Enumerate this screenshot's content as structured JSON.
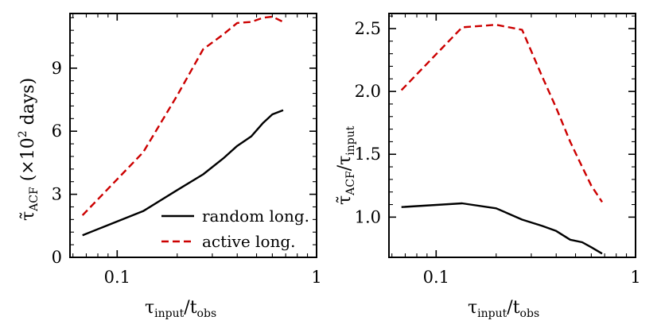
{
  "chart_data": [
    {
      "type": "line",
      "xscale": "log",
      "xlim": [
        0.058,
        1.0
      ],
      "ylim": [
        0,
        11.6
      ],
      "xticks": [
        0.1,
        1
      ],
      "xtick_labels": [
        "0.1",
        "1"
      ],
      "yticks": [
        0,
        3,
        6,
        9
      ],
      "ytick_labels": [
        "0",
        "3",
        "6",
        "9"
      ],
      "xlabel": {
        "main": "τ",
        "sub1": "input",
        "mid": "/t",
        "sub2": "obs"
      },
      "ylabel": {
        "main": "τ̃",
        "sub": "ACF",
        "rest": " (×10",
        "sup": "2",
        "end": " days)"
      },
      "legend_position": "lower-right",
      "series": [
        {
          "name": "random long.",
          "color": "#000000",
          "dash": "solid",
          "x": [
            0.067,
            0.135,
            0.2,
            0.27,
            0.34,
            0.4,
            0.47,
            0.54,
            0.6,
            0.68
          ],
          "y": [
            1.05,
            2.2,
            3.2,
            3.95,
            4.7,
            5.3,
            5.75,
            6.4,
            6.8,
            7.0
          ]
        },
        {
          "name": "active long.",
          "color": "#cc0000",
          "dash": "dashed",
          "x": [
            0.067,
            0.135,
            0.2,
            0.27,
            0.34,
            0.4,
            0.47,
            0.54,
            0.6,
            0.68
          ],
          "y": [
            2.0,
            5.0,
            7.7,
            9.9,
            10.6,
            11.15,
            11.2,
            11.4,
            11.45,
            11.2
          ]
        }
      ]
    },
    {
      "type": "line",
      "xscale": "log",
      "xlim": [
        0.058,
        1.0
      ],
      "ylim": [
        0.68,
        2.62
      ],
      "xticks": [
        0.1,
        1
      ],
      "xtick_labels": [
        "0.1",
        "1"
      ],
      "yticks": [
        1.0,
        1.5,
        2.0,
        2.5
      ],
      "ytick_labels": [
        "1.0",
        "1.5",
        "2.0",
        "2.5"
      ],
      "xlabel": {
        "main": "τ",
        "sub1": "input",
        "mid": "/t",
        "sub2": "obs"
      },
      "ylabel": {
        "main": "τ̃",
        "sub": "ACF",
        "rest": "/τ",
        "sub2": "input"
      },
      "series": [
        {
          "color": "#000000",
          "dash": "solid",
          "x": [
            0.067,
            0.135,
            0.2,
            0.27,
            0.34,
            0.4,
            0.47,
            0.54,
            0.6,
            0.68
          ],
          "y": [
            1.08,
            1.11,
            1.07,
            0.98,
            0.93,
            0.89,
            0.82,
            0.8,
            0.76,
            0.71
          ]
        },
        {
          "color": "#cc0000",
          "dash": "dashed",
          "x": [
            0.067,
            0.135,
            0.2,
            0.27,
            0.34,
            0.4,
            0.47,
            0.54,
            0.6,
            0.68
          ],
          "y": [
            2.01,
            2.51,
            2.53,
            2.49,
            2.12,
            1.87,
            1.6,
            1.4,
            1.25,
            1.12
          ]
        }
      ]
    }
  ]
}
